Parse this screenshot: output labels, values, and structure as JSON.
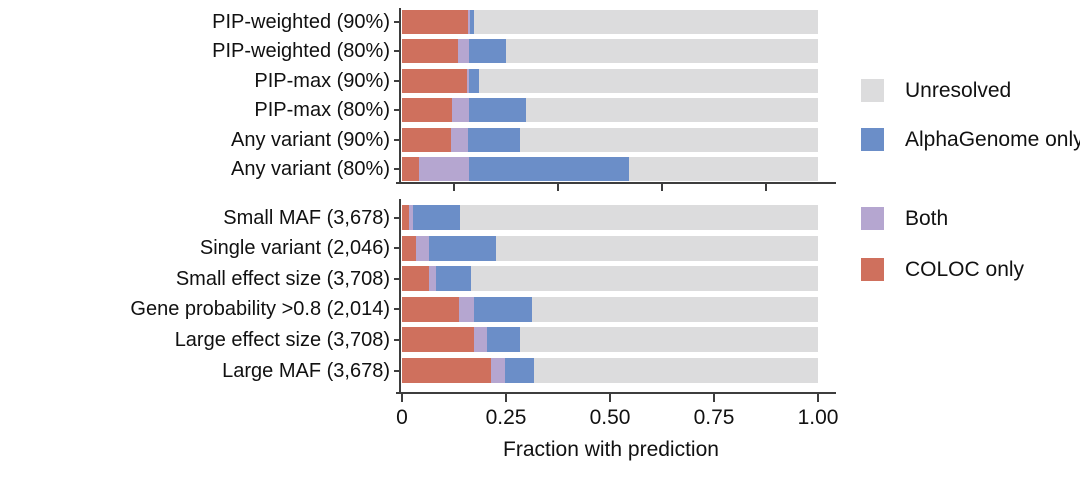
{
  "colors": {
    "unresolved": "#dcdcdd",
    "alphagenome": "#6b8ec8",
    "both": "#b5a6d0",
    "coloc": "#cf705d",
    "axis": "#3d3d3d",
    "text": "#111111",
    "background": "#ffffff"
  },
  "legend": {
    "items": [
      {
        "label": "Unresolved",
        "color_key": "unresolved"
      },
      {
        "label": "AlphaGenome only",
        "color_key": "alphagenome"
      },
      {
        "label": "Both",
        "color_key": "both"
      },
      {
        "label": "COLOC only",
        "color_key": "coloc"
      }
    ]
  },
  "x_axis": {
    "title": "Fraction with prediction",
    "range": [
      0,
      1
    ],
    "ticks": [
      {
        "value": 0,
        "label": "0"
      },
      {
        "value": 0.25,
        "label": "0.25"
      },
      {
        "value": 0.5,
        "label": "0.50"
      },
      {
        "value": 0.75,
        "label": "0.75"
      },
      {
        "value": 1.0,
        "label": "1.00"
      }
    ],
    "top_panel_minor_ticks": [
      0.125,
      0.375,
      0.625,
      0.875
    ]
  },
  "chart_data": {
    "type": "bar",
    "orientation": "horizontal",
    "stacked": true,
    "stack_order": [
      "COLOC only",
      "Both",
      "AlphaGenome only",
      "Unresolved"
    ],
    "xlabel": "Fraction with prediction",
    "xlim": [
      0,
      1
    ],
    "panels": [
      {
        "name": "top",
        "rows": [
          {
            "label": "PIP-weighted (90%)",
            "coloc": 0.158,
            "both": 0.005,
            "alphagenome": 0.01,
            "unresolved": 0.827
          },
          {
            "label": "PIP-weighted (80%)",
            "coloc": 0.134,
            "both": 0.027,
            "alphagenome": 0.09,
            "unresolved": 0.749
          },
          {
            "label": "PIP-max (90%)",
            "coloc": 0.156,
            "both": 0.004,
            "alphagenome": 0.025,
            "unresolved": 0.815
          },
          {
            "label": "PIP-max (80%)",
            "coloc": 0.12,
            "both": 0.04,
            "alphagenome": 0.137,
            "unresolved": 0.703
          },
          {
            "label": "Any variant (90%)",
            "coloc": 0.118,
            "both": 0.04,
            "alphagenome": 0.125,
            "unresolved": 0.717
          },
          {
            "label": "Any variant (80%)",
            "coloc": 0.04,
            "both": 0.12,
            "alphagenome": 0.385,
            "unresolved": 0.455
          }
        ]
      },
      {
        "name": "bottom",
        "rows": [
          {
            "label": "Small MAF (3,678)",
            "coloc": 0.018,
            "both": 0.008,
            "alphagenome": 0.114,
            "unresolved": 0.86
          },
          {
            "label": "Single variant (2,046)",
            "coloc": 0.034,
            "both": 0.032,
            "alphagenome": 0.161,
            "unresolved": 0.773
          },
          {
            "label": "Small effect size (3,708)",
            "coloc": 0.066,
            "both": 0.015,
            "alphagenome": 0.086,
            "unresolved": 0.833
          },
          {
            "label": "Gene probability >0.8 (2,014)",
            "coloc": 0.138,
            "both": 0.034,
            "alphagenome": 0.14,
            "unresolved": 0.688
          },
          {
            "label": "Large effect size (3,708)",
            "coloc": 0.174,
            "both": 0.03,
            "alphagenome": 0.08,
            "unresolved": 0.716
          },
          {
            "label": "Large MAF (3,678)",
            "coloc": 0.214,
            "both": 0.034,
            "alphagenome": 0.069,
            "unresolved": 0.683
          }
        ]
      }
    ]
  }
}
